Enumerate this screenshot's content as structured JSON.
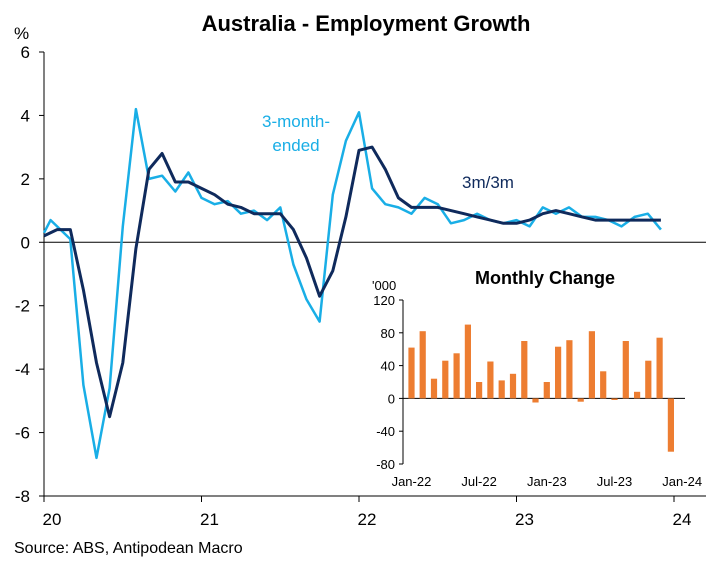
{
  "chart_data": [
    {
      "type": "line",
      "title": "Australia - Employment Growth",
      "ylabel": "%",
      "ylim": [
        -8,
        6
      ],
      "yticks": [
        6,
        4,
        2,
        0,
        -2,
        -4,
        -6,
        -8
      ],
      "xlim": [
        0,
        48
      ],
      "xticks": [
        {
          "label": "20",
          "x": 0
        },
        {
          "label": "21",
          "x": 12
        },
        {
          "label": "22",
          "x": 24
        },
        {
          "label": "23",
          "x": 36
        },
        {
          "label": "24",
          "x": 48
        }
      ],
      "series": [
        {
          "name": "3-month-ended",
          "color": "#19aee6",
          "label_lines": [
            "3-month-",
            "ended"
          ],
          "points": [
            [
              0,
              0.3
            ],
            [
              0.5,
              0.7
            ],
            [
              1,
              0.5
            ],
            [
              2,
              0.1
            ],
            [
              3,
              -4.5
            ],
            [
              4,
              -6.8
            ],
            [
              5,
              -4.6
            ],
            [
              6,
              0.5
            ],
            [
              7,
              4.2
            ],
            [
              8,
              2.0
            ],
            [
              9,
              2.1
            ],
            [
              10,
              1.6
            ],
            [
              11,
              2.2
            ],
            [
              12,
              1.4
            ],
            [
              13,
              1.2
            ],
            [
              14,
              1.3
            ],
            [
              15,
              0.9
            ],
            [
              16,
              1.0
            ],
            [
              17,
              0.7
            ],
            [
              18,
              1.1
            ],
            [
              19,
              -0.7
            ],
            [
              20,
              -1.8
            ],
            [
              21,
              -2.5
            ],
            [
              22,
              1.5
            ],
            [
              23,
              3.2
            ],
            [
              24,
              4.1
            ],
            [
              25,
              1.7
            ],
            [
              26,
              1.2
            ],
            [
              27,
              1.1
            ],
            [
              28,
              0.9
            ],
            [
              29,
              1.4
            ],
            [
              30,
              1.2
            ],
            [
              31,
              0.6
            ],
            [
              32,
              0.7
            ],
            [
              33,
              0.9
            ],
            [
              34,
              0.7
            ],
            [
              35,
              0.6
            ],
            [
              36,
              0.7
            ],
            [
              37,
              0.5
            ],
            [
              38,
              1.1
            ],
            [
              39,
              0.9
            ],
            [
              40,
              1.1
            ],
            [
              41,
              0.8
            ],
            [
              42,
              0.8
            ],
            [
              43,
              0.7
            ],
            [
              44,
              0.5
            ],
            [
              45,
              0.8
            ],
            [
              46,
              0.9
            ],
            [
              47,
              0.4
            ]
          ]
        },
        {
          "name": "3m/3m",
          "color": "#0f2a5c",
          "label_lines": [
            "3m/3m"
          ],
          "points": [
            [
              0,
              0.2
            ],
            [
              1,
              0.4
            ],
            [
              2,
              0.4
            ],
            [
              3,
              -1.5
            ],
            [
              4,
              -3.8
            ],
            [
              5,
              -5.5
            ],
            [
              6,
              -3.8
            ],
            [
              7,
              -0.2
            ],
            [
              8,
              2.3
            ],
            [
              9,
              2.8
            ],
            [
              10,
              1.9
            ],
            [
              11,
              1.9
            ],
            [
              12,
              1.7
            ],
            [
              13,
              1.5
            ],
            [
              14,
              1.2
            ],
            [
              15,
              1.1
            ],
            [
              16,
              0.9
            ],
            [
              17,
              0.9
            ],
            [
              18,
              0.9
            ],
            [
              19,
              0.4
            ],
            [
              20,
              -0.5
            ],
            [
              21,
              -1.7
            ],
            [
              22,
              -0.9
            ],
            [
              23,
              0.8
            ],
            [
              24,
              2.9
            ],
            [
              25,
              3.0
            ],
            [
              26,
              2.3
            ],
            [
              27,
              1.4
            ],
            [
              28,
              1.1
            ],
            [
              29,
              1.1
            ],
            [
              30,
              1.1
            ],
            [
              31,
              1.0
            ],
            [
              32,
              0.9
            ],
            [
              33,
              0.8
            ],
            [
              34,
              0.7
            ],
            [
              35,
              0.6
            ],
            [
              36,
              0.6
            ],
            [
              37,
              0.7
            ],
            [
              38,
              0.9
            ],
            [
              39,
              1.0
            ],
            [
              40,
              0.9
            ],
            [
              41,
              0.8
            ],
            [
              42,
              0.7
            ],
            [
              43,
              0.7
            ],
            [
              44,
              0.7
            ],
            [
              45,
              0.7
            ],
            [
              46,
              0.7
            ],
            [
              47,
              0.7
            ]
          ]
        }
      ]
    },
    {
      "type": "bar",
      "title": "Monthly Change",
      "ylabel": "'000",
      "ylim": [
        -80,
        120
      ],
      "yticks": [
        120,
        80,
        40,
        0,
        -40,
        -80
      ],
      "xtick_labels": [
        "Jan-22",
        "Jul-22",
        "Jan-23",
        "Jul-23",
        "Jan-24"
      ],
      "xtick_indices": [
        0,
        6,
        12,
        18,
        24
      ],
      "color": "#ed7d31",
      "categories": [
        "Jan-22",
        "Feb-22",
        "Mar-22",
        "Apr-22",
        "May-22",
        "Jun-22",
        "Jul-22",
        "Aug-22",
        "Sep-22",
        "Oct-22",
        "Nov-22",
        "Dec-22",
        "Jan-23",
        "Feb-23",
        "Mar-23",
        "Apr-23",
        "May-23",
        "Jun-23",
        "Jul-23",
        "Aug-23",
        "Sep-23",
        "Oct-23",
        "Nov-23",
        "Dec-23"
      ],
      "values": [
        62,
        82,
        24,
        46,
        55,
        90,
        20,
        45,
        22,
        30,
        70,
        -5,
        20,
        63,
        71,
        -4,
        82,
        33,
        -2,
        70,
        8,
        46,
        74,
        -65
      ]
    }
  ],
  "source": "Source: ABS, Antipodean Macro"
}
